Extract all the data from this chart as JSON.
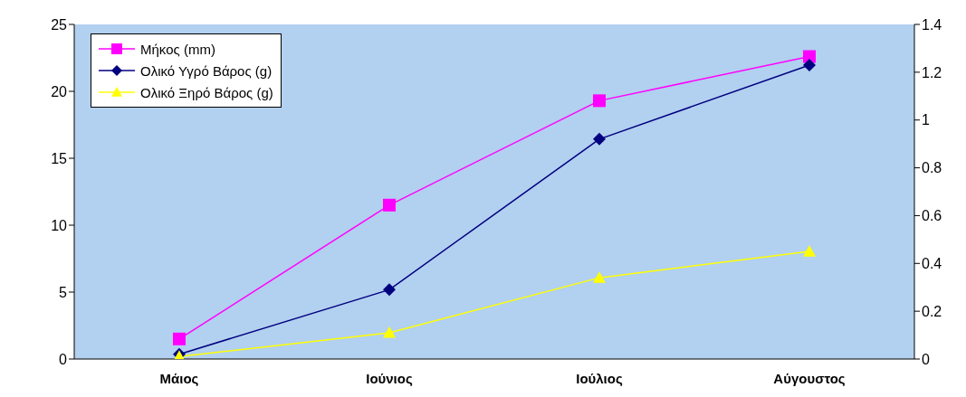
{
  "chart_data": {
    "type": "line",
    "categories": [
      "Μάιος",
      "Ιούνιος",
      "Ιούλιος",
      "Αύγουστος"
    ],
    "series": [
      {
        "name": "Μήκος (mm)",
        "color": "#ff00ff",
        "marker": "square",
        "values": [
          1.5,
          11.5,
          19.3,
          22.6
        ]
      },
      {
        "name": "Ολικό Υγρό Βάρος (g)",
        "color": "#000080",
        "marker": "diamond",
        "axis": "y2",
        "values": [
          0.02,
          0.29,
          0.92,
          1.23
        ]
      },
      {
        "name": "Ολικό Ξηρό Βάρος (g)",
        "color": "#ffff00",
        "marker": "triangle",
        "axis": "y2",
        "values": [
          0.01,
          0.11,
          0.34,
          0.45
        ]
      }
    ],
    "ylim": [
      0,
      25
    ],
    "yticks": [
      0,
      5,
      10,
      15,
      20,
      25
    ],
    "y2lim": [
      0,
      1.4
    ],
    "y2ticks": [
      0,
      0.2,
      0.4,
      0.6,
      0.8,
      1,
      1.2,
      1.4
    ],
    "legend": "top left"
  }
}
